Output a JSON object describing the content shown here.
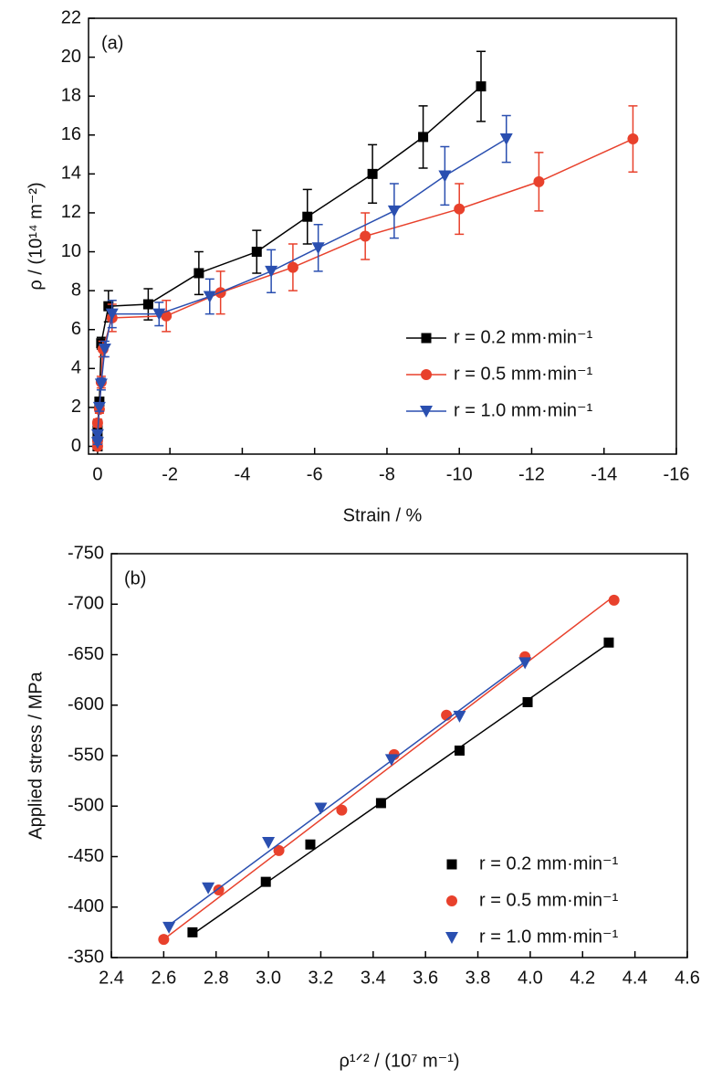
{
  "chart_data": [
    {
      "type": "line",
      "annotation": "(a)",
      "x_label": "Strain / %",
      "y_label": "ρ / (10¹⁴ m⁻²)",
      "xlim": [
        0.25,
        -16
      ],
      "ylim": [
        -0.4,
        22
      ],
      "xticks": [
        0,
        -2,
        -4,
        -6,
        -8,
        -10,
        -12,
        -14,
        -16
      ],
      "yticks": [
        0,
        2,
        4,
        6,
        8,
        10,
        12,
        14,
        16,
        18,
        20,
        22
      ],
      "legend": "lower right",
      "series": [
        {
          "name": "r = 0.2 mm·min⁻¹",
          "color": "#000000",
          "marker": "square",
          "x": [
            0,
            0,
            0,
            -0.05,
            -0.1,
            -0.3,
            -1.4,
            -2.8,
            -4.4,
            -5.8,
            -7.6,
            -9.0,
            -10.6
          ],
          "values": [
            0,
            0.5,
            1.1,
            2.3,
            5.3,
            7.2,
            7.3,
            8.9,
            10.0,
            11.8,
            14.0,
            15.9,
            18.5
          ],
          "errors": [
            0.1,
            0.1,
            0.2,
            0.2,
            0.3,
            0.8,
            0.8,
            1.1,
            1.1,
            1.4,
            1.5,
            1.6,
            1.8
          ]
        },
        {
          "name": "r = 0.5 mm·min⁻¹",
          "color": "#e8412c",
          "marker": "circle",
          "x": [
            0,
            0,
            0,
            -0.05,
            -0.1,
            -0.15,
            -0.4,
            -1.9,
            -3.4,
            -5.4,
            -7.4,
            -10.0,
            -12.2,
            -14.8
          ],
          "values": [
            0,
            0.3,
            1.2,
            1.9,
            3.3,
            5.0,
            6.6,
            6.7,
            7.9,
            9.2,
            10.8,
            12.2,
            13.6,
            15.8
          ],
          "errors": [
            0.1,
            0.1,
            0.2,
            0.2,
            0.3,
            0.4,
            0.7,
            0.8,
            1.1,
            1.2,
            1.2,
            1.3,
            1.5,
            1.7
          ]
        },
        {
          "name": "r = 1.0 mm·min⁻¹",
          "color": "#2a4fb0",
          "marker": "triangle-down",
          "x": [
            0,
            0,
            -0.05,
            -0.1,
            -0.2,
            -0.4,
            -1.7,
            -3.1,
            -4.8,
            -6.1,
            -8.2,
            -9.6,
            -11.3
          ],
          "values": [
            0.2,
            0.6,
            2.0,
            3.2,
            5.0,
            6.8,
            6.8,
            7.7,
            9.0,
            10.2,
            12.1,
            13.9,
            15.8
          ],
          "errors": [
            0.1,
            0.1,
            0.2,
            0.3,
            0.4,
            0.7,
            0.6,
            0.9,
            1.1,
            1.2,
            1.4,
            1.5,
            1.2
          ]
        }
      ]
    },
    {
      "type": "scatter",
      "annotation": "(b)",
      "x_label": "ρ¹ᐟ² / (10⁷ m⁻¹)",
      "y_label": "Applied stress / MPa",
      "xlim": [
        2.4,
        4.6
      ],
      "ylim": [
        -350,
        -750
      ],
      "xticks": [
        2.4,
        2.6,
        2.8,
        {
          "value": 3,
          "label": "3.0"
        },
        3.2,
        3.4,
        3.6,
        3.8,
        {
          "value": 4,
          "label": "4.0"
        },
        4.2,
        4.4,
        4.6
      ],
      "yticks": [
        -350,
        -400,
        -450,
        -500,
        -550,
        -600,
        -650,
        -700,
        -750
      ],
      "legend": "lower right",
      "series": [
        {
          "name": "r = 0.2 mm·min⁻¹",
          "color": "#000000",
          "marker": "square",
          "x": [
            2.71,
            2.99,
            3.16,
            3.43,
            3.73,
            3.99,
            4.3
          ],
          "values": [
            -375,
            -425,
            -462,
            -503,
            -555,
            -603,
            -662
          ],
          "fit_x": [
            2.71,
            4.31
          ],
          "fit_y": [
            -373,
            -663
          ]
        },
        {
          "name": "r = 0.5 mm·min⁻¹",
          "color": "#e8412c",
          "marker": "circle",
          "x": [
            2.6,
            2.81,
            3.04,
            3.28,
            3.48,
            3.68,
            3.98,
            4.32
          ],
          "values": [
            -368,
            -417,
            -456,
            -496,
            -551,
            -590,
            -648,
            -704
          ],
          "fit_x": [
            2.6,
            4.32
          ],
          "fit_y": [
            -368,
            -708
          ]
        },
        {
          "name": "r = 1.0 mm·min⁻¹",
          "color": "#2a4fb0",
          "marker": "triangle-down",
          "x": [
            2.62,
            2.77,
            3.0,
            3.2,
            3.47,
            3.73,
            3.98
          ],
          "values": [
            -380,
            -419,
            -464,
            -498,
            -546,
            -589,
            -642
          ],
          "fit_x": [
            2.62,
            3.98
          ],
          "fit_y": [
            -382,
            -643
          ]
        }
      ]
    }
  ]
}
